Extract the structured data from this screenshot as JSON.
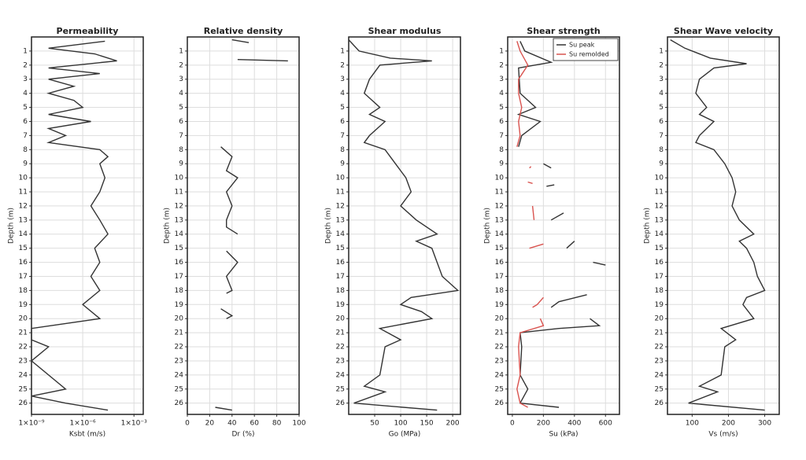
{
  "chart_data": [
    {
      "type": "line",
      "title": "Permeability",
      "xlabel": "Ksbt (m/s)",
      "ylabel": "Depth (m)",
      "log_x": true,
      "grid": true,
      "y_inverted": true,
      "xlim": [
        1e-09,
        0.0035
      ],
      "xticks": [
        {
          "value": 1e-09,
          "label": "1×10⁻⁹"
        },
        {
          "value": 1e-06,
          "label": "1×10⁻⁶"
        },
        {
          "value": 0.001,
          "label": "1×10⁻³"
        }
      ],
      "ylim": [
        0,
        26.8
      ],
      "yticks": [
        1,
        2,
        3,
        4,
        5,
        6,
        7,
        8,
        9,
        10,
        11,
        12,
        13,
        14,
        15,
        16,
        17,
        18,
        19,
        20,
        21,
        22,
        23,
        24,
        25,
        26
      ],
      "series": [
        {
          "color": "#333333",
          "depth": [
            0.3,
            0.8,
            1.2,
            1.7,
            2.2,
            2.6,
            3.0,
            3.5,
            4.0,
            4.5,
            5.0,
            5.5,
            6.0,
            6.5,
            7.0,
            7.5,
            8.0,
            8.5,
            9.0,
            10,
            11,
            12,
            13,
            14,
            15,
            16,
            17,
            18,
            19,
            20,
            20.7,
            21.5,
            22,
            23,
            25,
            25.5,
            26,
            26.5
          ],
          "values": [
            2e-05,
            1e-08,
            5e-06,
            0.0001,
            1e-08,
            1e-05,
            1e-08,
            3e-07,
            1e-08,
            3e-07,
            1e-06,
            1e-08,
            3e-06,
            1e-08,
            1e-07,
            1e-08,
            1e-05,
            3e-05,
            1e-05,
            2e-05,
            1e-05,
            3e-06,
            1e-05,
            3e-05,
            5e-06,
            1e-05,
            3e-06,
            1e-05,
            1e-06,
            1e-05,
            1e-09,
            1e-09,
            1e-08,
            1e-09,
            1e-07,
            1e-09,
            1e-07,
            3e-05
          ]
        }
      ]
    },
    {
      "type": "line",
      "title": "Relative density",
      "xlabel": "Dr (%)",
      "ylabel": "Depth (m)",
      "grid": true,
      "y_inverted": true,
      "xlim": [
        0,
        100
      ],
      "xticks": [
        0,
        20,
        40,
        60,
        80,
        100
      ],
      "ylim": [
        0,
        26.8
      ],
      "yticks": [
        1,
        2,
        3,
        4,
        5,
        6,
        7,
        8,
        9,
        10,
        11,
        12,
        13,
        14,
        15,
        16,
        17,
        18,
        19,
        20,
        21,
        22,
        23,
        24,
        25,
        26
      ],
      "series": [
        {
          "color": "#333333",
          "depth": [
            0.2,
            0.4,
            null,
            1.6,
            1.7,
            null,
            7.8,
            8.5,
            9.5,
            10,
            11,
            12,
            13,
            13.5,
            14,
            null,
            15.2,
            16,
            17,
            18,
            18.2,
            null,
            19.3,
            19.8,
            20,
            null,
            26.3,
            26.5
          ],
          "values": [
            40,
            55,
            null,
            45,
            90,
            null,
            30,
            40,
            35,
            45,
            35,
            40,
            35,
            35,
            45,
            null,
            35,
            45,
            35,
            40,
            35,
            null,
            30,
            40,
            35,
            null,
            25,
            40
          ]
        }
      ]
    },
    {
      "type": "line",
      "title": "Shear modulus",
      "xlabel": "Go (MPa)",
      "ylabel": "Depth (m)",
      "grid": true,
      "y_inverted": true,
      "xlim": [
        0,
        215
      ],
      "xticks": [
        50,
        100,
        150,
        200
      ],
      "ylim": [
        0,
        26.8
      ],
      "yticks": [
        1,
        2,
        3,
        4,
        5,
        6,
        7,
        8,
        9,
        10,
        11,
        12,
        13,
        14,
        15,
        16,
        17,
        18,
        19,
        20,
        21,
        22,
        23,
        24,
        25,
        26
      ],
      "series": [
        {
          "color": "#333333",
          "depth": [
            0.2,
            1,
            1.5,
            1.7,
            2,
            3,
            4,
            5,
            5.5,
            6,
            7,
            7.5,
            8,
            9,
            10,
            11,
            12,
            13,
            14,
            14.5,
            15,
            16,
            17,
            18,
            18.5,
            19,
            19.5,
            20,
            20.7,
            21.5,
            22,
            24,
            24.8,
            25.2,
            26,
            26.5
          ],
          "values": [
            0,
            20,
            80,
            160,
            60,
            40,
            30,
            60,
            40,
            70,
            40,
            30,
            70,
            90,
            110,
            120,
            100,
            130,
            170,
            130,
            160,
            170,
            180,
            210,
            120,
            100,
            140,
            160,
            60,
            100,
            70,
            60,
            30,
            70,
            10,
            170
          ]
        }
      ]
    },
    {
      "type": "line",
      "title": "Shear strength",
      "xlabel": "Su (kPa)",
      "ylabel": "Depth (m)",
      "grid": true,
      "y_inverted": true,
      "legend": "upper right",
      "xlim": [
        -30,
        690
      ],
      "xticks": [
        0,
        200,
        400,
        600
      ],
      "ylim": [
        0,
        26.8
      ],
      "yticks": [
        1,
        2,
        3,
        4,
        5,
        6,
        7,
        8,
        9,
        10,
        11,
        12,
        13,
        14,
        15,
        16,
        17,
        18,
        19,
        20,
        21,
        22,
        23,
        24,
        25,
        26
      ],
      "series": [
        {
          "name": "Su peak",
          "color": "#333333",
          "depth": [
            0.3,
            1,
            1.8,
            2.2,
            4,
            5,
            5.5,
            6,
            7,
            7.8,
            null,
            9,
            9.3,
            null,
            10.5,
            10.6,
            null,
            12.5,
            13,
            null,
            14.5,
            15,
            null,
            16,
            16.2,
            null,
            18.3,
            18.8,
            19.2,
            null,
            20,
            20.5,
            20.7,
            21,
            22,
            24,
            25,
            26,
            26.3
          ],
          "values": [
            50,
            80,
            250,
            40,
            50,
            150,
            40,
            180,
            60,
            40,
            null,
            200,
            250,
            null,
            270,
            220,
            null,
            330,
            250,
            null,
            400,
            350,
            null,
            520,
            600,
            null,
            480,
            300,
            250,
            null,
            500,
            560,
            300,
            50,
            60,
            50,
            100,
            50,
            300
          ]
        },
        {
          "name": "Su remolded",
          "color": "#d9534f",
          "depth": [
            0.3,
            1,
            2,
            3,
            4,
            5,
            6,
            7,
            7.8,
            null,
            9.2,
            9.3,
            null,
            10.3,
            10.4,
            null,
            12,
            13,
            null,
            15,
            14.7,
            null,
            18.5,
            19,
            19.2,
            null,
            20,
            20.5,
            21,
            22,
            24,
            25,
            26,
            26.3
          ],
          "values": [
            30,
            50,
            100,
            40,
            40,
            60,
            40,
            50,
            30,
            null,
            120,
            110,
            null,
            100,
            130,
            null,
            130,
            140,
            null,
            110,
            200,
            null,
            200,
            160,
            130,
            null,
            180,
            200,
            50,
            40,
            50,
            30,
            50,
            100
          ]
        }
      ]
    },
    {
      "type": "line",
      "title": "Shear Wave velocity",
      "xlabel": "Vs (m/s)",
      "ylabel": "Depth (m)",
      "grid": true,
      "y_inverted": true,
      "xlim": [
        32,
        340
      ],
      "xticks": [
        100,
        200,
        300
      ],
      "ylim": [
        0,
        26.8
      ],
      "yticks": [
        1,
        2,
        3,
        4,
        5,
        6,
        7,
        8,
        9,
        10,
        11,
        12,
        13,
        14,
        15,
        16,
        17,
        18,
        19,
        20,
        21,
        22,
        23,
        24,
        25,
        26
      ],
      "series": [
        {
          "color": "#333333",
          "depth": [
            0.2,
            0.8,
            1.5,
            1.9,
            2.2,
            3,
            4,
            5,
            5.5,
            6,
            7,
            7.5,
            8,
            9,
            10,
            11,
            12,
            13,
            14,
            14.5,
            15,
            16,
            17,
            18,
            18.5,
            19,
            20,
            20.7,
            21.5,
            22,
            24,
            24.8,
            25.2,
            26,
            26.5
          ],
          "values": [
            40,
            80,
            150,
            250,
            160,
            120,
            110,
            140,
            120,
            160,
            120,
            110,
            160,
            190,
            210,
            220,
            210,
            230,
            270,
            230,
            250,
            270,
            280,
            300,
            250,
            240,
            270,
            180,
            220,
            190,
            180,
            120,
            170,
            90,
            300
          ]
        }
      ]
    }
  ]
}
